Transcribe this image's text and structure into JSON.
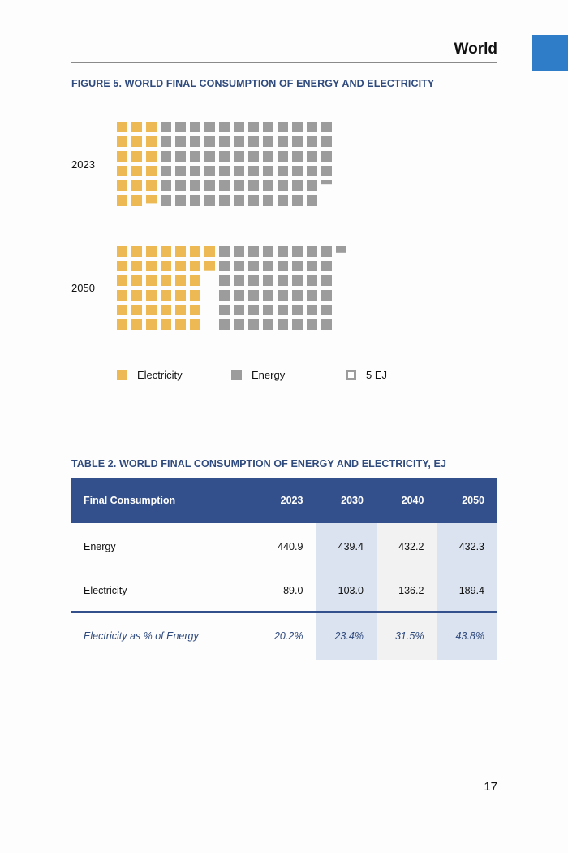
{
  "header": {
    "title": "World",
    "accent_color": "#2f7dc8"
  },
  "figure": {
    "title": "FIGURE 5. WORLD FINAL CONSUMPTION OF ENERGY AND ELECTRICITY",
    "unit_label": "5 EJ",
    "colors": {
      "electricity": "#ecb954",
      "energy": "#9c9c9c"
    }
  },
  "chart_data": {
    "type": "waffle",
    "title": "FIGURE 5. WORLD FINAL CONSUMPTION OF ENERGY AND ELECTRICITY",
    "unit": "5 EJ per square",
    "legend": [
      "Electricity",
      "Energy",
      "5 EJ"
    ],
    "series": [
      {
        "year": "2023",
        "electricity_squares": 17.8,
        "energy_squares": 70.4,
        "electricity_ej": 89.0,
        "energy_ej": 440.9
      },
      {
        "year": "2050",
        "electricity_squares": 37.9,
        "energy_squares": 48.6,
        "electricity_ej": 189.4,
        "energy_ej": 432.3
      }
    ]
  },
  "table": {
    "title": "TABLE 2. WORLD FINAL CONSUMPTION OF ENERGY AND ELECTRICITY, EJ",
    "headers": [
      "Final Consumption",
      "2023",
      "2030",
      "2040",
      "2050"
    ],
    "rows": [
      [
        "Energy",
        "440.9",
        "439.4",
        "432.2",
        "432.3"
      ],
      [
        "Electricity",
        "89.0",
        "103.0",
        "136.2",
        "189.4"
      ]
    ],
    "pct_row": [
      "Electricity as % of Energy",
      "20.2%",
      "23.4%",
      "31.5%",
      "43.8%"
    ]
  },
  "page_number": "17"
}
